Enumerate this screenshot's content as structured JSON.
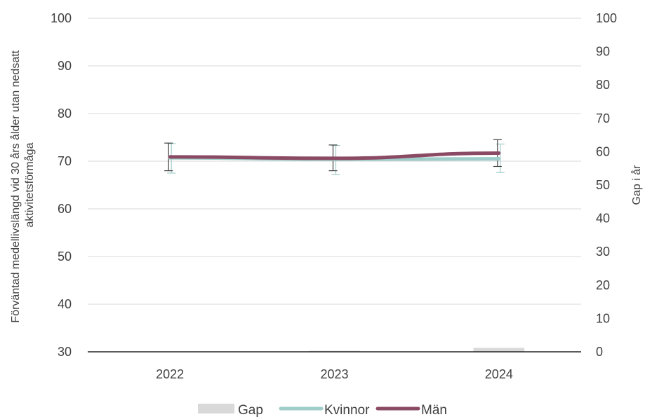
{
  "chart_data": {
    "type": "line",
    "categories": [
      "2022",
      "2023",
      "2024"
    ],
    "y_left": {
      "label_lines": [
        "Förväntad medellivslängd vid 30 års ålder utan nedsatt",
        "aktivitetsförmåga"
      ],
      "range": [
        30,
        100
      ],
      "ticks": [
        "30",
        "40",
        "50",
        "60",
        "70",
        "80",
        "90",
        "100"
      ]
    },
    "y_right": {
      "label": "Gap i år",
      "range": [
        0,
        100
      ],
      "ticks": [
        "0",
        "10",
        "20",
        "30",
        "40",
        "50",
        "60",
        "70",
        "80",
        "90",
        "100"
      ]
    },
    "series": [
      {
        "name": "Gap",
        "kind": "bar",
        "axis": "right",
        "color": "#d9d9d9",
        "values": [
          0.1,
          0.3,
          1.2
        ]
      },
      {
        "name": "Kvinnor",
        "kind": "line",
        "axis": "left",
        "color": "#9fcdc9",
        "values": [
          70.7,
          70.4,
          70.5
        ],
        "error_low": [
          67.5,
          67.2,
          67.6
        ],
        "error_high": [
          73.7,
          73.3,
          73.6
        ]
      },
      {
        "name": "Män",
        "kind": "line",
        "axis": "left",
        "color": "#8b4a63",
        "values": [
          70.9,
          70.6,
          71.7
        ],
        "error_low": [
          68.0,
          68.0,
          68.9
        ],
        "error_high": [
          73.8,
          73.4,
          74.5
        ]
      }
    ],
    "grid": true,
    "legend_position": "bottom"
  }
}
